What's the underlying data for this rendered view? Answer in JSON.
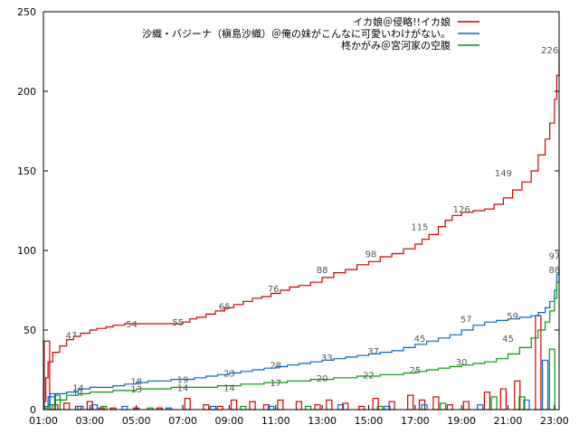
{
  "chart_data": {
    "type": "line",
    "x_ticks": [
      "01:00",
      "03:00",
      "05:00",
      "07:00",
      "09:00",
      "11:00",
      "13:00",
      "15:00",
      "17:00",
      "19:00",
      "21:00",
      "23:00"
    ],
    "xlim": [
      1,
      23.2
    ],
    "y_ticks": [
      "0",
      "50",
      "100",
      "150",
      "200",
      "250"
    ],
    "ylim": [
      0,
      250
    ],
    "grid": false,
    "legend": "top-right",
    "series": [
      {
        "name": "イカ娘＠侵略!!イカ娘",
        "color": "#cc0000",
        "cumulative": {
          "x": [
            1.0,
            1.1,
            1.2,
            1.4,
            1.7,
            2.0,
            2.3,
            2.6,
            3.0,
            3.3,
            3.7,
            4.0,
            4.5,
            5.0,
            5.5,
            6.0,
            6.5,
            7.0,
            7.3,
            7.6,
            8.0,
            8.4,
            8.8,
            9.2,
            9.6,
            10.0,
            10.4,
            10.8,
            11.2,
            11.6,
            12.0,
            12.5,
            13.0,
            13.5,
            14.0,
            14.5,
            15.0,
            15.5,
            16.0,
            16.5,
            17.0,
            17.3,
            17.6,
            18.0,
            18.3,
            18.6,
            19.0,
            19.5,
            20.0,
            20.4,
            20.8,
            21.2,
            21.6,
            22.0,
            22.3,
            22.6,
            22.8,
            23.0,
            23.1,
            23.2
          ],
          "y": [
            5,
            20,
            30,
            36,
            40,
            44,
            46,
            48,
            50,
            51,
            52,
            53,
            54,
            54,
            54,
            54,
            54,
            55,
            57,
            58,
            60,
            62,
            64,
            66,
            68,
            70,
            71,
            73,
            75,
            77,
            78,
            80,
            83,
            86,
            88,
            91,
            93,
            96,
            98,
            101,
            104,
            107,
            110,
            115,
            119,
            122,
            124,
            125,
            126,
            129,
            133,
            138,
            143,
            150,
            160,
            170,
            180,
            195,
            210,
            226
          ]
        },
        "labels": [
          {
            "x": 2.2,
            "y": 47
          },
          {
            "x": 4.8,
            "y": 54
          },
          {
            "x": 6.8,
            "y": 55
          },
          {
            "x": 8.8,
            "y": 65
          },
          {
            "x": 10.9,
            "y": 76
          },
          {
            "x": 13.0,
            "y": 88
          },
          {
            "x": 15.1,
            "y": 98
          },
          {
            "x": 17.2,
            "y": 115
          },
          {
            "x": 19.0,
            "y": 126
          },
          {
            "x": 20.8,
            "y": 149
          },
          {
            "x": 22.8,
            "y": 226
          }
        ],
        "bars": [
          {
            "x": 1.15,
            "v": 43
          },
          {
            "x": 1.5,
            "v": 3
          },
          {
            "x": 2.0,
            "v": 4
          },
          {
            "x": 2.5,
            "v": 2
          },
          {
            "x": 3.0,
            "v": 5
          },
          {
            "x": 3.5,
            "v": 1
          },
          {
            "x": 4.0,
            "v": 1
          },
          {
            "x": 5.0,
            "v": 1
          },
          {
            "x": 6.0,
            "v": 1
          },
          {
            "x": 7.2,
            "v": 7
          },
          {
            "x": 8.0,
            "v": 3
          },
          {
            "x": 8.6,
            "v": 2
          },
          {
            "x": 9.2,
            "v": 6
          },
          {
            "x": 10.0,
            "v": 5
          },
          {
            "x": 10.6,
            "v": 3
          },
          {
            "x": 11.2,
            "v": 6
          },
          {
            "x": 12.0,
            "v": 5
          },
          {
            "x": 12.8,
            "v": 3
          },
          {
            "x": 13.3,
            "v": 6
          },
          {
            "x": 14.0,
            "v": 4
          },
          {
            "x": 14.7,
            "v": 2
          },
          {
            "x": 15.3,
            "v": 7
          },
          {
            "x": 16.0,
            "v": 5
          },
          {
            "x": 16.8,
            "v": 9
          },
          {
            "x": 17.3,
            "v": 6
          },
          {
            "x": 17.9,
            "v": 8
          },
          {
            "x": 18.5,
            "v": 3
          },
          {
            "x": 19.2,
            "v": 5
          },
          {
            "x": 20.1,
            "v": 11
          },
          {
            "x": 20.8,
            "v": 13
          },
          {
            "x": 21.4,
            "v": 18
          },
          {
            "x": 22.3,
            "v": 59
          }
        ]
      },
      {
        "name": "沙織・バジーナ（槇島沙織）＠俺の妹がこんなに可愛いわけがない。",
        "color": "#0066cc",
        "cumulative": {
          "x": [
            1.0,
            1.2,
            1.5,
            2.0,
            2.5,
            3.0,
            3.5,
            4.0,
            4.5,
            5.0,
            5.5,
            6.0,
            6.5,
            7.0,
            7.5,
            8.0,
            8.5,
            9.0,
            9.5,
            10.0,
            10.5,
            11.0,
            11.5,
            12.0,
            12.5,
            13.0,
            13.5,
            14.0,
            14.5,
            15.0,
            15.5,
            16.0,
            16.5,
            17.0,
            17.5,
            18.0,
            18.5,
            19.0,
            19.5,
            20.0,
            20.5,
            21.0,
            21.5,
            22.0,
            22.3,
            22.6,
            22.8,
            23.0,
            23.1,
            23.2
          ],
          "y": [
            2,
            8,
            10,
            11,
            13,
            14,
            14,
            15,
            16,
            17,
            18,
            18,
            19,
            19,
            20,
            21,
            22,
            23,
            24,
            25,
            26,
            27,
            28,
            29,
            30,
            31,
            32,
            33,
            34,
            35,
            36,
            37,
            39,
            41,
            43,
            45,
            47,
            50,
            53,
            55,
            56,
            57,
            58,
            59,
            61,
            64,
            68,
            75,
            85,
            97
          ]
        },
        "labels": [
          {
            "x": 2.5,
            "y": 14
          },
          {
            "x": 5.0,
            "y": 18
          },
          {
            "x": 7.0,
            "y": 19
          },
          {
            "x": 9.0,
            "y": 23
          },
          {
            "x": 11.0,
            "y": 28
          },
          {
            "x": 13.2,
            "y": 33
          },
          {
            "x": 15.2,
            "y": 37
          },
          {
            "x": 17.2,
            "y": 45
          },
          {
            "x": 19.2,
            "y": 57
          },
          {
            "x": 21.2,
            "y": 59
          },
          {
            "x": 23.0,
            "y": 97
          }
        ],
        "bars": [
          {
            "x": 1.4,
            "v": 10
          },
          {
            "x": 2.6,
            "v": 2
          },
          {
            "x": 3.2,
            "v": 3
          },
          {
            "x": 4.5,
            "v": 2
          },
          {
            "x": 6.4,
            "v": 1
          },
          {
            "x": 8.3,
            "v": 2
          },
          {
            "x": 10.8,
            "v": 2
          },
          {
            "x": 13.8,
            "v": 3
          },
          {
            "x": 15.8,
            "v": 2
          },
          {
            "x": 17.4,
            "v": 3
          },
          {
            "x": 19.8,
            "v": 3
          },
          {
            "x": 21.8,
            "v": 6
          },
          {
            "x": 22.6,
            "v": 31
          }
        ]
      },
      {
        "name": "柊かがみ＠宮河家の空腹",
        "color": "#009900",
        "cumulative": {
          "x": [
            1.0,
            1.2,
            1.5,
            2.0,
            2.5,
            3.0,
            3.5,
            4.0,
            4.5,
            5.0,
            5.5,
            6.0,
            6.5,
            7.0,
            7.5,
            8.0,
            8.5,
            9.0,
            9.5,
            10.0,
            10.5,
            11.0,
            11.5,
            12.0,
            12.5,
            13.0,
            13.5,
            14.0,
            14.5,
            15.0,
            15.5,
            16.0,
            16.5,
            17.0,
            17.5,
            18.0,
            18.5,
            19.0,
            19.5,
            20.0,
            20.5,
            21.0,
            21.5,
            22.0,
            22.3,
            22.6,
            22.8,
            23.0,
            23.1,
            23.2
          ],
          "y": [
            1,
            3,
            6,
            9,
            10,
            11,
            11,
            12,
            12,
            13,
            13,
            13,
            14,
            14,
            14,
            14,
            15,
            15,
            16,
            16,
            17,
            17,
            18,
            18,
            19,
            19,
            20,
            20,
            21,
            21,
            22,
            22,
            23,
            24,
            25,
            26,
            27,
            28,
            29,
            30,
            32,
            35,
            39,
            45,
            50,
            55,
            62,
            70,
            80,
            88
          ]
        },
        "labels": [
          {
            "x": 2.5,
            "y": 11
          },
          {
            "x": 5.0,
            "y": 13
          },
          {
            "x": 7.0,
            "y": 14
          },
          {
            "x": 9.0,
            "y": 14
          },
          {
            "x": 11.0,
            "y": 17
          },
          {
            "x": 13.0,
            "y": 20
          },
          {
            "x": 15.0,
            "y": 22
          },
          {
            "x": 17.0,
            "y": 25
          },
          {
            "x": 19.0,
            "y": 30
          },
          {
            "x": 21.0,
            "y": 45
          },
          {
            "x": 23.0,
            "y": 88
          }
        ],
        "bars": [
          {
            "x": 1.6,
            "v": 9
          },
          {
            "x": 3.6,
            "v": 2
          },
          {
            "x": 5.6,
            "v": 1
          },
          {
            "x": 9.6,
            "v": 2
          },
          {
            "x": 12.4,
            "v": 2
          },
          {
            "x": 15.5,
            "v": 2
          },
          {
            "x": 18.2,
            "v": 4
          },
          {
            "x": 20.4,
            "v": 8
          },
          {
            "x": 21.6,
            "v": 8
          },
          {
            "x": 22.9,
            "v": 38
          }
        ]
      }
    ]
  }
}
